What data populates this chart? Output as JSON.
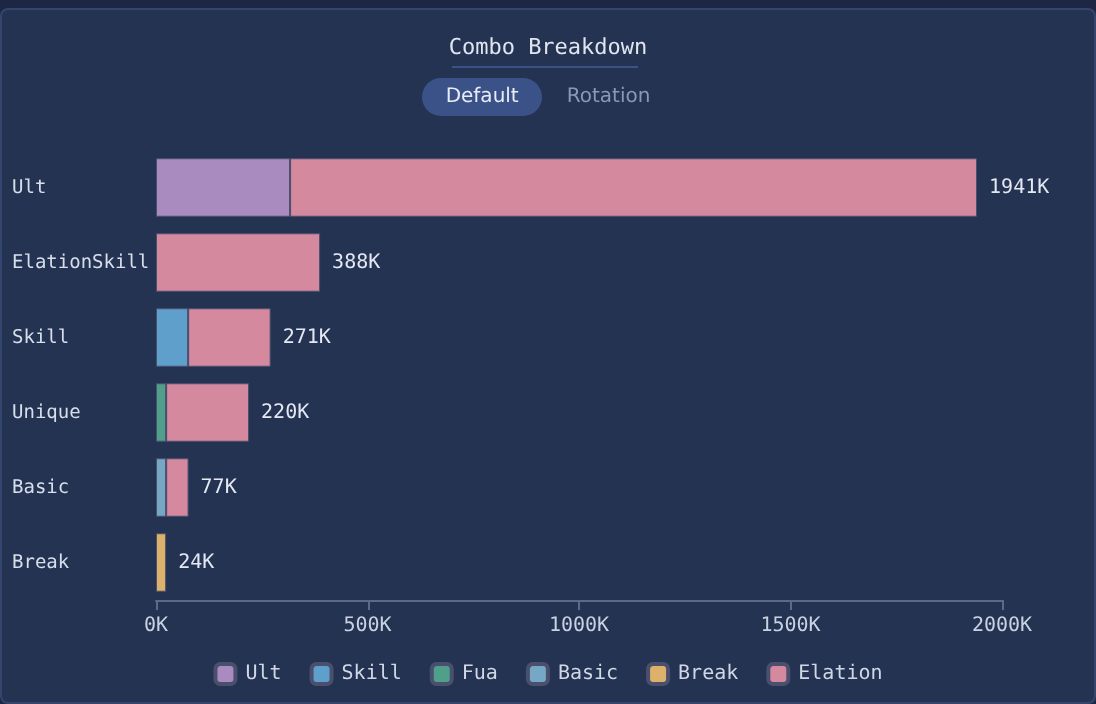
{
  "chart_data": {
    "type": "bar",
    "title": "Combo Breakdown",
    "orientation": "horizontal",
    "stacked": true,
    "categories": [
      "Ult",
      "ElationSkill",
      "Skill",
      "Unique",
      "Basic",
      "Break"
    ],
    "series": [
      {
        "name": "Ult",
        "color": "#a98bbf",
        "values": [
          317,
          null,
          null,
          null,
          null,
          null
        ]
      },
      {
        "name": "Skill",
        "color": "#5f9fcc",
        "values": [
          null,
          null,
          76,
          null,
          null,
          null
        ]
      },
      {
        "name": "Fua",
        "color": "#4f9f8a",
        "values": [
          null,
          null,
          null,
          24,
          null,
          null
        ]
      },
      {
        "name": "Basic",
        "color": "#76a8c6",
        "values": [
          null,
          null,
          null,
          null,
          24,
          null
        ]
      },
      {
        "name": "Break",
        "color": "#dcb26a",
        "values": [
          null,
          null,
          null,
          null,
          null,
          24
        ]
      },
      {
        "name": "Elation",
        "color": "#d4899f",
        "values": [
          1624,
          388,
          195,
          196,
          53,
          null
        ]
      }
    ],
    "totals": [
      "1941K",
      "388K",
      "271K",
      "220K",
      "77K",
      "24K"
    ],
    "xlim": [
      0,
      2000
    ],
    "xticks": [
      {
        "value": 0,
        "label": "0K"
      },
      {
        "value": 500,
        "label": "500K"
      },
      {
        "value": 1000,
        "label": "1000K"
      },
      {
        "value": 1500,
        "label": "1500K"
      },
      {
        "value": 2000,
        "label": "2000K"
      }
    ],
    "grid": false,
    "legend": "bottom",
    "annotations": [
      "Default",
      "Rotation"
    ]
  }
}
